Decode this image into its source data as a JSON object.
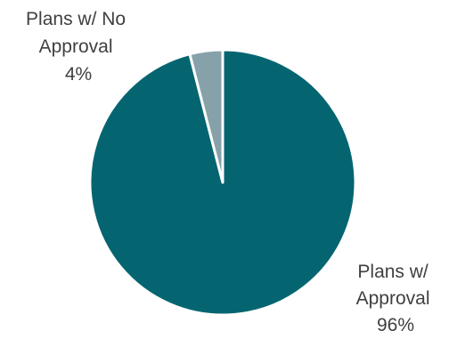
{
  "chart_data": {
    "type": "pie",
    "slices": [
      {
        "label_lines": [
          "Plans w/",
          "Approval",
          "96%"
        ],
        "value": 96,
        "color": "#046571"
      },
      {
        "label_lines": [
          "Plans w/ No",
          "Approval",
          "4%"
        ],
        "value": 4,
        "color": "#86a1a9"
      }
    ],
    "start_angle_deg": 0,
    "direction": "clockwise",
    "slice_border_color": "#ffffff",
    "legend": "none",
    "data_labels": "outside"
  }
}
